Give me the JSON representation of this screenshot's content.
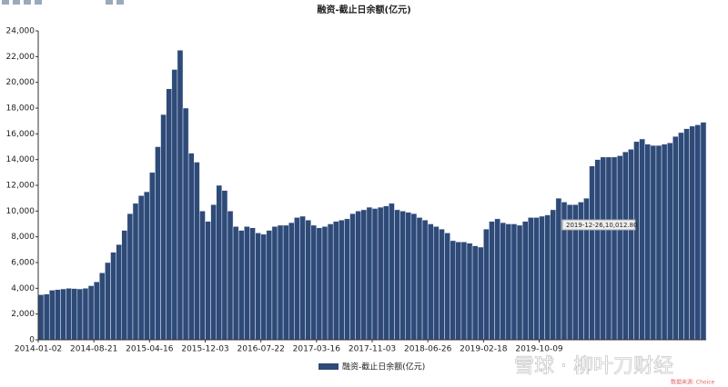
{
  "chart_data": {
    "type": "bar",
    "title": "融资-截止日余额(亿元)",
    "categories": [
      "2014-01-02",
      null,
      null,
      null,
      null,
      null,
      null,
      null,
      null,
      null,
      "2014-08-21",
      null,
      null,
      null,
      null,
      null,
      null,
      null,
      null,
      null,
      "2015-04-16",
      null,
      null,
      null,
      null,
      null,
      null,
      null,
      null,
      null,
      "2015-12-03",
      null,
      null,
      null,
      null,
      null,
      null,
      null,
      null,
      null,
      "2016-07-22",
      null,
      null,
      null,
      null,
      null,
      null,
      null,
      null,
      null,
      "2017-03-16",
      null,
      null,
      null,
      null,
      null,
      null,
      null,
      null,
      null,
      "2017-11-03",
      null,
      null,
      null,
      null,
      null,
      null,
      null,
      null,
      null,
      "2018-06-26",
      null,
      null,
      null,
      null,
      null,
      null,
      null,
      null,
      null,
      "2019-02-18",
      null,
      null,
      null,
      null,
      null,
      null,
      null,
      null,
      null,
      "2019-10-09",
      null,
      null,
      null,
      null,
      null,
      null,
      null,
      null,
      null,
      null,
      null,
      null,
      null,
      null,
      null,
      null,
      null,
      null,
      null,
      null,
      null,
      null,
      null,
      null,
      null,
      null,
      null,
      null,
      null
    ],
    "series": [
      {
        "name": "融资-截止日余额(亿元)",
        "color": "#2e4a78",
        "values": [
          3500,
          3550,
          3850,
          3900,
          3950,
          4000,
          3980,
          3950,
          4000,
          4200,
          4500,
          5200,
          6000,
          6800,
          7400,
          8500,
          9800,
          10600,
          11200,
          11500,
          13000,
          15000,
          17500,
          19500,
          21000,
          22500,
          18000,
          14500,
          13800,
          10000,
          9200,
          10500,
          12000,
          11600,
          10000,
          8800,
          8500,
          8800,
          8700,
          8300,
          8200,
          8500,
          8800,
          8900,
          8900,
          9100,
          9500,
          9600,
          9300,
          8900,
          8700,
          8800,
          9000,
          9200,
          9300,
          9400,
          9800,
          10000,
          10100,
          10300,
          10200,
          10300,
          10400,
          10600,
          10100,
          10000,
          9900,
          9800,
          9500,
          9300,
          9000,
          8800,
          8600,
          8300,
          7700,
          7600,
          7600,
          7500,
          7300,
          7200,
          8600,
          9200,
          9400,
          9100,
          9000,
          9000,
          8900,
          9200,
          9500,
          9500,
          9600,
          9700,
          10100,
          11000,
          10700,
          10500,
          10500,
          10700,
          11000,
          13500,
          14000,
          14200,
          14200,
          14200,
          14300,
          14600,
          14800,
          15400,
          15600,
          15200,
          15100,
          15100,
          15200,
          15300,
          15800,
          16100,
          16400,
          16600,
          16700,
          16900
        ]
      }
    ],
    "ylim": [
      0,
      24000
    ],
    "yticks": [
      0,
      {
        "value": 2000,
        "label": "2,000"
      },
      {
        "value": 4000,
        "label": "4,000"
      },
      {
        "value": 6000,
        "label": "6,000"
      },
      {
        "value": 8000,
        "label": "8,000"
      },
      {
        "value": 10000,
        "label": "10,000"
      },
      {
        "value": 12000,
        "label": "12,000"
      },
      {
        "value": 14000,
        "label": "14,000"
      },
      {
        "value": 16000,
        "label": "16,000"
      },
      {
        "value": 18000,
        "label": "18,000"
      },
      {
        "value": 20000,
        "label": "20,000"
      },
      {
        "value": 22000,
        "label": "22,000"
      },
      {
        "value": 24000,
        "label": "24,000"
      }
    ],
    "tooltip": "2019-12-26,10,012.80",
    "watermark": "雪球 · 柳叶刀财经",
    "source": "数据来源: Choice"
  }
}
